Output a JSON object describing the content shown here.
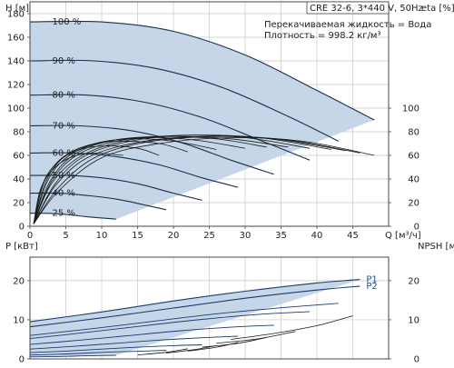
{
  "header": {
    "pump": "CRE 32-6, 3*440 V, 50Hz",
    "liquid": "Перекачиваемая жидкость = Вода",
    "density": "Плотность = 998.2 кг/м³"
  },
  "colors": {
    "envelope_fill": "#c5d6e8",
    "speed_curve": "#1c2d4a",
    "eff_curve": "#1a1a1a",
    "power_curve": "#1c3a6e",
    "label_blue": "#1f4f8f",
    "grid": "#c8c8c8"
  },
  "chart_data": [
    {
      "type": "line",
      "title": "",
      "xlabel": "Q [м³/ч]",
      "ylabel": "H [м]",
      "y2label": "eta [%]",
      "xlim": [
        0,
        50
      ],
      "ylim": [
        0,
        190
      ],
      "y2lim": [
        0,
        190
      ],
      "x_ticks": [
        0,
        5,
        10,
        15,
        20,
        25,
        30,
        35,
        40,
        45
      ],
      "y_ticks": [
        0,
        20,
        40,
        60,
        80,
        100,
        120,
        140,
        160,
        180
      ],
      "y2_ticks": [
        0,
        20,
        40,
        60,
        80,
        100
      ],
      "grid": true,
      "head_curves": [
        {
          "name": "100 %",
          "points": [
            [
              0,
              173
            ],
            [
              10,
              173
            ],
            [
              20,
              165
            ],
            [
              30,
              145
            ],
            [
              40,
              115
            ],
            [
              48,
              90
            ]
          ]
        },
        {
          "name": "90 %",
          "points": [
            [
              0,
              140
            ],
            [
              9,
              140
            ],
            [
              18,
              133
            ],
            [
              27,
              117
            ],
            [
              36,
              93
            ],
            [
              43,
              72
            ]
          ]
        },
        {
          "name": "80 %",
          "points": [
            [
              0,
              111
            ],
            [
              8,
              111
            ],
            [
              16,
              105
            ],
            [
              24,
              92
            ],
            [
              32,
              73
            ],
            [
              39,
              56
            ]
          ]
        },
        {
          "name": "70 %",
          "points": [
            [
              0,
              85
            ],
            [
              7,
              85
            ],
            [
              14,
              81
            ],
            [
              21,
              71
            ],
            [
              28,
              56
            ],
            [
              34,
              44
            ]
          ]
        },
        {
          "name": "60 %",
          "points": [
            [
              0,
              62
            ],
            [
              6,
              62
            ],
            [
              12,
              59
            ],
            [
              18,
              52
            ],
            [
              24,
              41
            ],
            [
              29,
              33
            ]
          ]
        },
        {
          "name": "50 %",
          "points": [
            [
              0,
              43
            ],
            [
              5,
              43
            ],
            [
              10,
              41
            ],
            [
              15,
              36
            ],
            [
              20,
              28
            ],
            [
              24,
              22
            ]
          ]
        },
        {
          "name": "40 %",
          "points": [
            [
              0,
              28
            ],
            [
              4,
              28
            ],
            [
              8,
              26
            ],
            [
              12,
              23
            ],
            [
              16,
              18
            ],
            [
              19,
              14
            ]
          ]
        },
        {
          "name": "25 %",
          "points": [
            [
              0,
              11
            ],
            [
              2,
              11
            ],
            [
              4,
              10.5
            ],
            [
              6,
              9.5
            ],
            [
              8,
              8
            ],
            [
              12,
              6
            ]
          ]
        }
      ],
      "efficiency_curves": [
        {
          "points": [
            [
              0.5,
              2
            ],
            [
              4,
              30
            ],
            [
              10,
              58
            ],
            [
              18,
              70
            ],
            [
              28,
              75
            ],
            [
              38,
              72
            ],
            [
              48,
              60
            ]
          ]
        },
        {
          "points": [
            [
              0.5,
              2
            ],
            [
              4,
              33
            ],
            [
              9,
              58
            ],
            [
              16,
              71
            ],
            [
              26,
              76
            ],
            [
              36,
              73
            ],
            [
              46,
              62
            ]
          ]
        },
        {
          "points": [
            [
              0.5,
              2
            ],
            [
              3.5,
              34
            ],
            [
              8,
              58
            ],
            [
              15,
              71
            ],
            [
              24,
              76
            ],
            [
              34,
              74
            ],
            [
              44,
              64
            ]
          ]
        },
        {
          "points": [
            [
              0.5,
              2
            ],
            [
              3.5,
              36
            ],
            [
              7.5,
              59
            ],
            [
              14,
              72
            ],
            [
              22,
              77
            ],
            [
              32,
              75
            ],
            [
              42,
              65
            ]
          ]
        },
        {
          "points": [
            [
              0.5,
              2
            ],
            [
              3,
              36
            ],
            [
              7,
              59
            ],
            [
              13,
              72
            ],
            [
              21,
              77
            ],
            [
              30,
              75
            ],
            [
              39,
              66
            ]
          ]
        },
        {
          "points": [
            [
              0.5,
              2
            ],
            [
              3,
              38
            ],
            [
              6.5,
              60
            ],
            [
              12,
              72
            ],
            [
              19,
              76
            ],
            [
              28,
              74
            ],
            [
              36,
              67
            ]
          ]
        },
        {
          "points": [
            [
              0.5,
              2
            ],
            [
              2.8,
              38
            ],
            [
              6,
              60
            ],
            [
              11,
              72
            ],
            [
              18,
              76
            ],
            [
              26,
              74
            ],
            [
              33,
              67
            ]
          ]
        },
        {
          "points": [
            [
              0.5,
              2
            ],
            [
              2.5,
              39
            ],
            [
              5.5,
              60
            ],
            [
              10,
              71
            ],
            [
              16,
              75
            ],
            [
              23,
              73
            ],
            [
              30,
              66
            ]
          ]
        },
        {
          "points": [
            [
              0.5,
              2
            ],
            [
              2.3,
              39
            ],
            [
              5,
              60
            ],
            [
              9,
              70
            ],
            [
              14,
              74
            ],
            [
              20,
              72
            ],
            [
              26,
              65
            ]
          ]
        },
        {
          "points": [
            [
              0.5,
              2
            ],
            [
              2,
              38
            ],
            [
              4.5,
              58
            ],
            [
              8,
              68
            ],
            [
              12,
              72
            ],
            [
              18,
              70
            ],
            [
              22,
              63
            ]
          ]
        },
        {
          "points": [
            [
              0.5,
              2
            ],
            [
              1.8,
              36
            ],
            [
              4,
              55
            ],
            [
              7,
              65
            ],
            [
              10.5,
              68
            ],
            [
              15,
              66
            ],
            [
              18,
              60
            ]
          ]
        },
        {
          "points": [
            [
              0.5,
              2
            ],
            [
              1.5,
              32
            ],
            [
              3.5,
              50
            ],
            [
              6,
              59
            ],
            [
              9,
              62
            ],
            [
              13,
              60
            ]
          ]
        }
      ]
    },
    {
      "type": "line",
      "title": "",
      "xlabel": "",
      "ylabel": "P [кВт]",
      "y2label": "NPSH [м]",
      "xlim": [
        0,
        50
      ],
      "ylim": [
        0,
        26
      ],
      "y2lim": [
        0,
        26
      ],
      "y_ticks": [
        0,
        10,
        20
      ],
      "y2_ticks": [
        0,
        10,
        20
      ],
      "grid": true,
      "series": [
        {
          "name": "P1",
          "points": [
            [
              0,
              9.5
            ],
            [
              10,
              12
            ],
            [
              20,
              14.8
            ],
            [
              30,
              17.3
            ],
            [
              40,
              19.4
            ],
            [
              46,
              20.3
            ]
          ]
        },
        {
          "name": "P2",
          "points": [
            [
              0,
              8.2
            ],
            [
              10,
              10.5
            ],
            [
              20,
              13
            ],
            [
              30,
              15.5
            ],
            [
              40,
              17.6
            ],
            [
              46,
              18.6
            ]
          ]
        }
      ],
      "power_curves_other": [
        {
          "points": [
            [
              0,
              6
            ],
            [
              9,
              7.8
            ],
            [
              18,
              9.8
            ],
            [
              27,
              11.7
            ],
            [
              36,
              13.2
            ],
            [
              43,
              14.2
            ]
          ]
        },
        {
          "points": [
            [
              0,
              5.2
            ],
            [
              8,
              6.8
            ],
            [
              16,
              8.5
            ],
            [
              24,
              10.1
            ],
            [
              32,
              11.4
            ],
            [
              39,
              12.1
            ]
          ]
        },
        {
          "points": [
            [
              0,
              3.7
            ],
            [
              7,
              4.8
            ],
            [
              14,
              6
            ],
            [
              21,
              7.2
            ],
            [
              28,
              8.1
            ],
            [
              34,
              8.6
            ]
          ]
        },
        {
          "points": [
            [
              0,
              2.5
            ],
            [
              6,
              3.2
            ],
            [
              12,
              4
            ],
            [
              18,
              4.8
            ],
            [
              24,
              5.4
            ],
            [
              29,
              5.8
            ]
          ]
        },
        {
          "points": [
            [
              0,
              1.6
            ],
            [
              5,
              2
            ],
            [
              10,
              2.5
            ],
            [
              15,
              3
            ],
            [
              20,
              3.4
            ],
            [
              24,
              3.6
            ]
          ]
        },
        {
          "points": [
            [
              0,
              1
            ],
            [
              4,
              1.2
            ],
            [
              8,
              1.5
            ],
            [
              12,
              1.8
            ],
            [
              16,
              2
            ],
            [
              19,
              2.2
            ]
          ]
        },
        {
          "points": [
            [
              0,
              0.5
            ],
            [
              2,
              0.55
            ],
            [
              4,
              0.6
            ],
            [
              6,
              0.7
            ],
            [
              8,
              0.8
            ],
            [
              12,
              0.9
            ]
          ]
        }
      ],
      "npsh_curves": [
        {
          "points": [
            [
              28,
              5
            ],
            [
              34,
              6.5
            ],
            [
              40,
              8.5
            ],
            [
              45,
              11
            ]
          ]
        },
        {
          "points": [
            [
              26,
              4
            ],
            [
              32,
              5.2
            ],
            [
              37,
              7
            ]
          ]
        },
        {
          "points": [
            [
              24,
              3
            ],
            [
              29,
              4
            ],
            [
              33,
              5.5
            ]
          ]
        },
        {
          "points": [
            [
              22,
              2
            ],
            [
              26,
              3
            ],
            [
              29,
              4.2
            ]
          ]
        },
        {
          "points": [
            [
              19,
              1.5
            ],
            [
              23,
              2.4
            ],
            [
              26,
              3.4
            ]
          ]
        },
        {
          "points": [
            [
              15,
              1
            ],
            [
              19,
              1.7
            ],
            [
              22,
              2.6
            ]
          ]
        }
      ]
    }
  ]
}
